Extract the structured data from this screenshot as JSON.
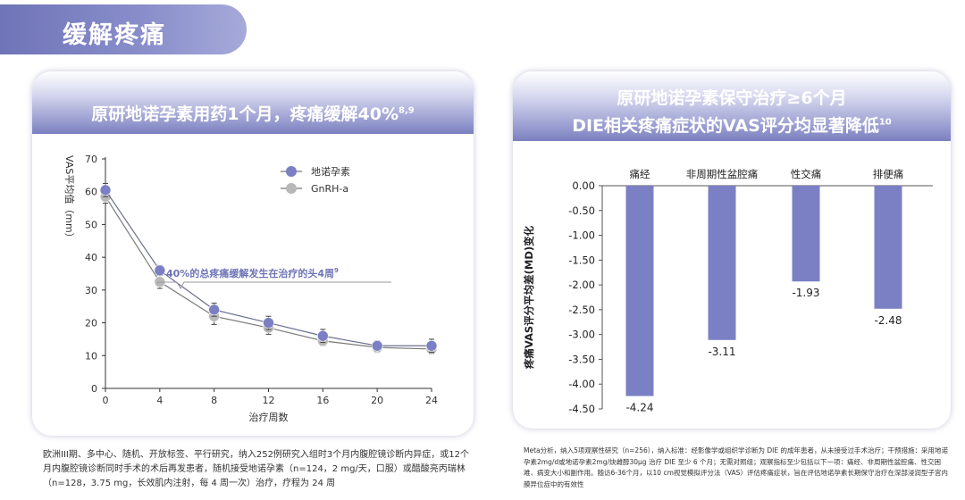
{
  "section_title": "缓解疼痛",
  "left_card": {
    "title": "原研地诺孕素用药1个月，疼痛缓解40%",
    "title_ref": "8,9",
    "annotation": "40%的总疼痛缓解发生在治疗的头4周",
    "annotation_ref": "9",
    "footnote": "欧洲III期、多中心、随机、开放标签、平行研究，纳入252例研究入组时3个月内腹腔镜诊断内异症，或12个月内腹腔镜诊断同时手术的术后再发患者，随机接受地诺孕素（n=124，2 mg/天，口服）或醋酸亮丙瑞林（n=128，3.75 mg，长效肌内注射，每 4 周一次）治疗，疗程为 24 周"
  },
  "right_card": {
    "title_line1": "原研地诺孕素保守治疗≥6个月",
    "title_line2": "DIE相关疼痛症状的VAS评分均显著降低",
    "title_ref": "10",
    "footnote": "Meta分析，纳入5项观察性研究（n=256），纳入标准：经影像学或组织学诊断为 DIE 的成年患者，从未接受过手术治疗；干预措施：采用地诺孕素2mg/d或地诺孕素2mg/炔雌醇30μg 治疗 DIE 至少 6 个月；无需对照组；观察指标至少包括以下一项：痛经、非周期性盆腔痛、性交困难、病变大小和副作用。随访6-36个月，以10 cm视觉模拟评分法（VAS）评估疼痛症状，旨在评估地诺孕素长期保守治疗在深部浸润型子宫内膜异位症中的有效性"
  },
  "colors": {
    "dienogest": "#7b80c4",
    "gnrh": "#b8b8b8",
    "bar": "#7b80c4"
  },
  "chart_data": [
    {
      "type": "line",
      "xlabel": "治疗周数",
      "ylabel": "VAS平均值（mm）",
      "x": [
        0,
        4,
        8,
        12,
        16,
        20,
        24
      ],
      "xlim": [
        0,
        24
      ],
      "ylim": [
        0,
        70
      ],
      "xticks": [
        0,
        4,
        8,
        12,
        16,
        20,
        24
      ],
      "yticks": [
        0,
        10,
        20,
        30,
        40,
        50,
        60,
        70
      ],
      "legend_position": "top-right",
      "error_bars": true,
      "series": [
        {
          "name": "地诺孕素",
          "values": [
            60.5,
            36,
            24,
            20,
            16,
            13,
            13
          ],
          "err": [
            2,
            1.5,
            2,
            2,
            2,
            1.5,
            2
          ]
        },
        {
          "name": "GnRH-a",
          "values": [
            58.5,
            32.5,
            22,
            18.5,
            14.5,
            12.5,
            12
          ],
          "err": [
            2,
            2,
            2.5,
            2,
            1.5,
            1.5,
            1.5
          ]
        }
      ]
    },
    {
      "type": "bar",
      "ylabel": "疼痛VAS评分平均差(MD)变化",
      "categories": [
        "痛经",
        "非周期性盆腔痛",
        "性交痛",
        "排便痛"
      ],
      "values": [
        -4.24,
        -3.11,
        -1.93,
        -2.48
      ],
      "value_labels": [
        "-4.24",
        "-3.11",
        "-1.93",
        "-2.48"
      ],
      "ylim": [
        -4.5,
        0
      ],
      "yticks": [
        "0.00",
        "-0.50",
        "-1.00",
        "-1.50",
        "-2.00",
        "-2.50",
        "-3.00",
        "-3.50",
        "-4.00",
        "-4.50"
      ],
      "grid": false
    }
  ]
}
